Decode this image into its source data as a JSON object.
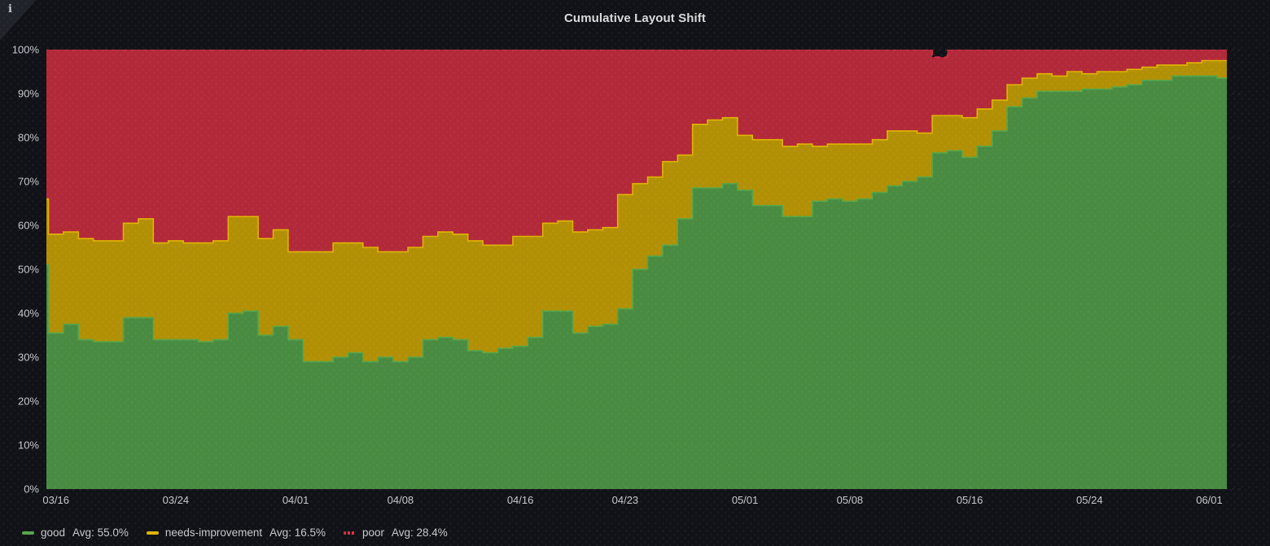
{
  "panel": {
    "title": "Cumulative Layout Shift",
    "info_icon": "i"
  },
  "legend": {
    "position": "bottom",
    "items": [
      {
        "label": "good",
        "avg": "Avg: 55.0%",
        "color": "#56A64B",
        "swatch_style": "solid"
      },
      {
        "label": "needs-improvement",
        "avg": "Avg: 16.5%",
        "color": "#E0B400",
        "swatch_style": "solid"
      },
      {
        "label": "poor",
        "avg": "Avg: 28.4%",
        "color": "#E02F44",
        "swatch_style": "dashed"
      }
    ]
  },
  "colors": {
    "background": "#111217",
    "grid": "rgba(204,204,220,0.14)",
    "tick_text": "#c7c8cc",
    "title_text": "#d8d9da"
  },
  "chart_data": {
    "type": "area",
    "stacked": true,
    "unit": "percent",
    "title": "Cumulative Layout Shift",
    "xlabel": "",
    "ylabel": "",
    "ylim": [
      0,
      100
    ],
    "grid": true,
    "legend_position": "bottom",
    "y_ticks": [
      "0%",
      "10%",
      "20%",
      "30%",
      "40%",
      "50%",
      "60%",
      "70%",
      "80%",
      "90%",
      "100%"
    ],
    "x_tick_dates": [
      "03/16",
      "03/24",
      "04/01",
      "04/08",
      "04/16",
      "04/23",
      "05/01",
      "05/08",
      "05/16",
      "05/24",
      "06/01"
    ],
    "dates": [
      "03/15",
      "03/16",
      "03/17",
      "03/18",
      "03/19",
      "03/20",
      "03/21",
      "03/22",
      "03/23",
      "03/24",
      "03/25",
      "03/26",
      "03/27",
      "03/28",
      "03/29",
      "03/30",
      "03/31",
      "04/01",
      "04/02",
      "04/03",
      "04/04",
      "04/05",
      "04/06",
      "04/07",
      "04/08",
      "04/09",
      "04/10",
      "04/11",
      "04/12",
      "04/13",
      "04/14",
      "04/15",
      "04/16",
      "04/17",
      "04/18",
      "04/19",
      "04/20",
      "04/21",
      "04/22",
      "04/23",
      "04/24",
      "04/25",
      "04/26",
      "04/27",
      "04/28",
      "04/29",
      "04/30",
      "05/01",
      "05/02",
      "05/03",
      "05/04",
      "05/05",
      "05/06",
      "05/07",
      "05/08",
      "05/09",
      "05/10",
      "05/11",
      "05/12",
      "05/13",
      "05/14",
      "05/15",
      "05/16",
      "05/17",
      "05/18",
      "05/19",
      "05/20",
      "05/21",
      "05/22",
      "05/23",
      "05/24",
      "05/25",
      "05/26",
      "05/27",
      "05/28",
      "05/29",
      "05/30",
      "05/31",
      "06/01",
      "06/02"
    ],
    "series": [
      {
        "name": "good",
        "avg": 55.0,
        "color": "#56A64B",
        "fill": "rgba(86,166,75,0.82)",
        "line_style": "solid",
        "values": [
          51,
          35.5,
          37.5,
          34,
          33.5,
          33.5,
          39,
          39,
          34,
          34,
          34,
          33.5,
          34,
          40,
          40.5,
          35,
          37,
          34,
          29,
          29,
          30,
          31,
          29,
          30,
          29,
          30,
          34,
          34.5,
          34,
          31.5,
          31,
          32,
          32.5,
          34.5,
          40.5,
          40.5,
          35.5,
          37,
          37.5,
          41,
          50,
          53,
          55.5,
          61.5,
          68.5,
          68.5,
          69.5,
          68,
          64.5,
          64.5,
          62,
          62,
          65.5,
          66,
          65.5,
          66,
          67.5,
          69,
          70,
          71,
          76.5,
          77,
          75.5,
          78,
          81.5,
          87,
          89,
          90.5,
          90.5,
          90.5,
          91,
          91,
          91.5,
          92,
          93,
          93,
          94,
          94,
          94,
          93.5
        ]
      },
      {
        "name": "needs-improvement",
        "avg": 16.5,
        "color": "#E0B400",
        "fill": "rgba(224,180,0,0.78)",
        "line_style": "solid",
        "values": [
          15,
          22.5,
          21,
          23,
          23,
          23,
          21.5,
          22.5,
          22,
          22.5,
          22,
          22.5,
          22.5,
          22,
          21.5,
          22,
          22,
          20,
          25,
          25,
          26,
          25,
          26,
          24,
          25,
          25,
          23.5,
          24,
          24,
          25,
          24.5,
          23.5,
          25,
          23,
          20,
          20.5,
          23,
          22,
          22,
          26,
          19.5,
          18,
          19,
          14.5,
          14.5,
          15.5,
          15,
          12.5,
          15,
          15,
          16,
          16.5,
          12.5,
          12.5,
          13,
          12.5,
          12,
          12.5,
          11.5,
          10,
          8.5,
          8,
          9,
          8.5,
          7,
          5,
          4.5,
          4,
          3.5,
          4.5,
          3.5,
          4,
          3.5,
          3.5,
          3,
          3.5,
          2.5,
          3,
          3.5,
          4
        ]
      },
      {
        "name": "poor",
        "avg": 28.4,
        "color": "#E02F44",
        "fill": "rgba(224,47,68,0.78)",
        "line_style": "dashed",
        "values": [
          34,
          42,
          41.5,
          43,
          43.5,
          43.5,
          39.5,
          38.5,
          44,
          43.5,
          44,
          44,
          43.5,
          38,
          38,
          43,
          41,
          46,
          46,
          46,
          44,
          44,
          45,
          46,
          46,
          45,
          42.5,
          41.5,
          42,
          43.5,
          44.5,
          44.5,
          42.5,
          42.5,
          39.5,
          39,
          41.5,
          41,
          40.5,
          33,
          30.5,
          29,
          25.5,
          24,
          17,
          16,
          15.5,
          19.5,
          20.5,
          20.5,
          22,
          21.5,
          22,
          21.5,
          21.5,
          21.5,
          20.5,
          18.5,
          18.5,
          19,
          13.3,
          15,
          15.5,
          13.5,
          11.5,
          8,
          6.5,
          5.5,
          6,
          5,
          5.5,
          5,
          5,
          4.5,
          4,
          3.5,
          3.5,
          3,
          2.5,
          2.5
        ]
      }
    ]
  }
}
